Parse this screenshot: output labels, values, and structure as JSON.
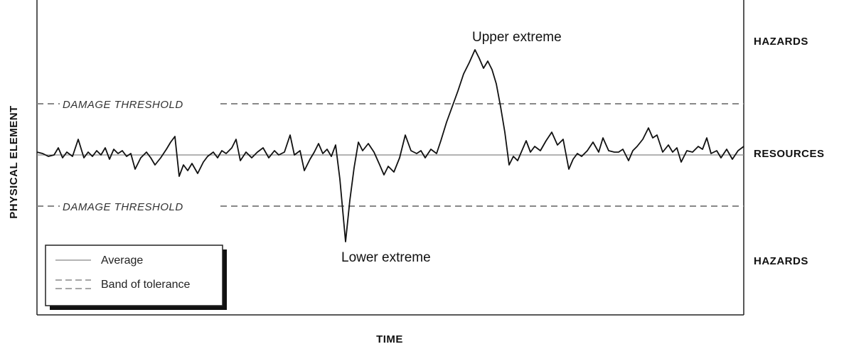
{
  "axes": {
    "xlabel": "TIME",
    "ylabel": "PHYSICAL ELEMENT"
  },
  "zones": {
    "top": "HAZARDS",
    "middle": "RESOURCES",
    "bottom": "HAZARDS"
  },
  "thresholds": {
    "upper_label": "DAMAGE THRESHOLD",
    "lower_label": "DAMAGE THRESHOLD"
  },
  "annotations": {
    "upper": "Upper extreme",
    "lower": "Lower extreme"
  },
  "legend": {
    "items": [
      {
        "label": "Average",
        "style": "solid"
      },
      {
        "label": "Band of tolerance",
        "style": "dashed"
      }
    ]
  },
  "colors": {
    "line": "#111111",
    "average": "#888888",
    "threshold": "#888888"
  }
}
